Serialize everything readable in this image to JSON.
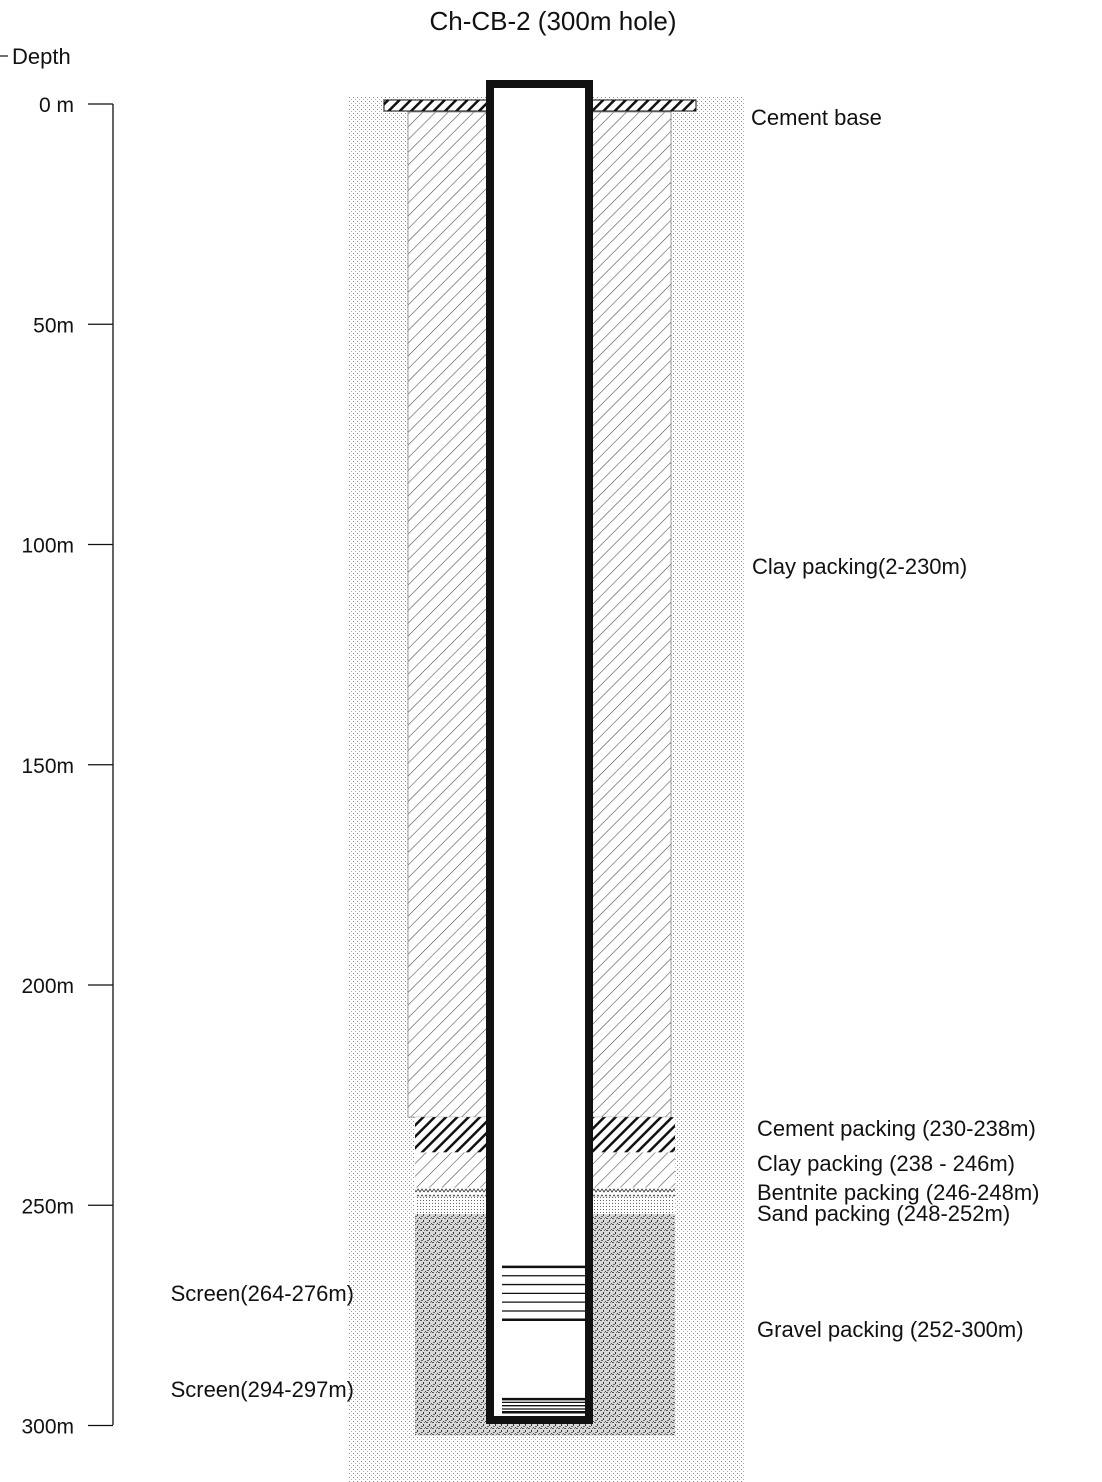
{
  "title": "Ch-CB-2 (300m hole)",
  "depth_axis": {
    "label": "Depth",
    "ticks": [
      {
        "depth": 0,
        "label": "0 m"
      },
      {
        "depth": 50,
        "label": "50m"
      },
      {
        "depth": 100,
        "label": "100m"
      },
      {
        "depth": 150,
        "label": "150m"
      },
      {
        "depth": 200,
        "label": "200m"
      },
      {
        "depth": 250,
        "label": "250m"
      },
      {
        "depth": 300,
        "label": "300m"
      }
    ]
  },
  "layers": [
    {
      "name": "cement-base",
      "label": "Cement base",
      "top": 0,
      "bottom": 2,
      "pattern": "cement"
    },
    {
      "name": "clay-packing-upper",
      "label": "Clay packing(2-230m)",
      "top": 2,
      "bottom": 230,
      "pattern": "clay"
    },
    {
      "name": "cement-packing",
      "label": "Cement packing (230-238m)",
      "top": 230,
      "bottom": 238,
      "pattern": "cement"
    },
    {
      "name": "clay-packing-lower",
      "label": "Clay packing (238 - 246m)",
      "top": 238,
      "bottom": 246,
      "pattern": "clay"
    },
    {
      "name": "bentnite-packing",
      "label": "Bentnite packing (246-248m)",
      "top": 246,
      "bottom": 248,
      "pattern": "bentonite"
    },
    {
      "name": "sand-packing",
      "label": "Sand packing (248-252m)",
      "top": 248,
      "bottom": 252,
      "pattern": "sand"
    },
    {
      "name": "gravel-packing",
      "label": "Gravel packing (252-300m)",
      "top": 252,
      "bottom": 300,
      "pattern": "gravel"
    }
  ],
  "screens": [
    {
      "label": "Screen(264-276m)",
      "top": 264,
      "bottom": 276
    },
    {
      "label": "Screen(294-297m)",
      "top": 294,
      "bottom": 297
    }
  ],
  "colors": {
    "ink": "#111111",
    "hatch": "#444444",
    "dots": "#9a9a9a",
    "background": "#ffffff"
  }
}
